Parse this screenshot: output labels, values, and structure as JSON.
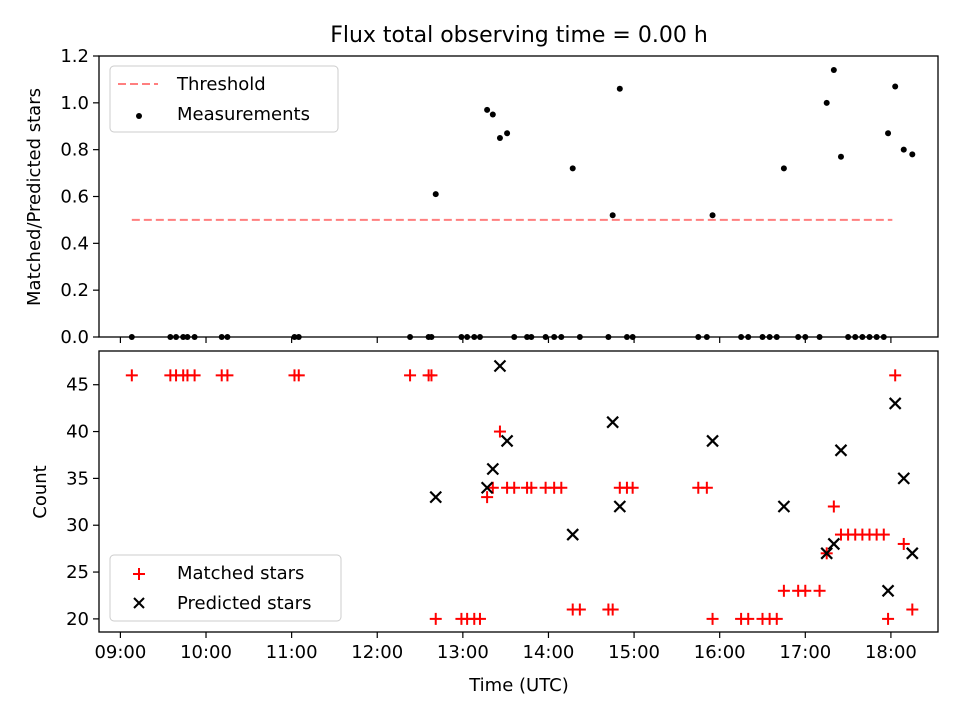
{
  "chart_data": {
    "title": "Flux total observing time = 0.00 h",
    "xlabel": "Time (UTC)",
    "x_tick_labels": [
      "09:00",
      "10:00",
      "11:00",
      "12:00",
      "13:00",
      "14:00",
      "15:00",
      "16:00",
      "17:00",
      "18:00"
    ],
    "xlim": [
      "08:45",
      "18:33"
    ],
    "colors": {
      "threshold": "#ff7f7f",
      "measurements": "#000000",
      "matched": "#ff0000",
      "predicted": "#000000"
    },
    "panels": [
      {
        "type": "scatter",
        "ylabel": "Matched/Predicted stars",
        "ylim": [
          0,
          1.2
        ],
        "y_ticks": [
          "0.0",
          "0.2",
          "0.4",
          "0.6",
          "0.8",
          "1.0",
          "1.2"
        ],
        "legend_position": "top-left",
        "series": [
          {
            "name": "Threshold",
            "kind": "dashed-line",
            "points": [
              [
                "09:08",
                0.5
              ],
              [
                "18:01",
                0.5
              ]
            ]
          },
          {
            "name": "Measurements",
            "kind": "dots",
            "points": [
              [
                "09:08",
                0
              ],
              [
                "09:35",
                0
              ],
              [
                "09:39",
                0
              ],
              [
                "09:44",
                0
              ],
              [
                "09:47",
                0
              ],
              [
                "09:52",
                0
              ],
              [
                "10:11",
                0
              ],
              [
                "10:15",
                0
              ],
              [
                "11:02",
                0
              ],
              [
                "11:05",
                0
              ],
              [
                "12:23",
                0
              ],
              [
                "12:36",
                0
              ],
              [
                "12:38",
                0
              ],
              [
                "12:41",
                0.61
              ],
              [
                "12:59",
                0
              ],
              [
                "13:03",
                0
              ],
              [
                "13:08",
                0
              ],
              [
                "13:12",
                0
              ],
              [
                "13:17",
                0.97
              ],
              [
                "13:21",
                0.95
              ],
              [
                "13:26",
                0.85
              ],
              [
                "13:31",
                0.87
              ],
              [
                "13:36",
                0
              ],
              [
                "13:45",
                0
              ],
              [
                "13:48",
                0
              ],
              [
                "13:58",
                0
              ],
              [
                "14:04",
                0
              ],
              [
                "14:09",
                0
              ],
              [
                "14:17",
                0.72
              ],
              [
                "14:22",
                0
              ],
              [
                "14:42",
                0
              ],
              [
                "14:45",
                0.52
              ],
              [
                "14:50",
                1.06
              ],
              [
                "14:55",
                0
              ],
              [
                "14:59",
                0
              ],
              [
                "15:45",
                0
              ],
              [
                "15:51",
                0
              ],
              [
                "15:55",
                0.52
              ],
              [
                "16:15",
                0
              ],
              [
                "16:20",
                0
              ],
              [
                "16:30",
                0
              ],
              [
                "16:35",
                0
              ],
              [
                "16:40",
                0
              ],
              [
                "16:45",
                0.72
              ],
              [
                "16:55",
                0
              ],
              [
                "17:00",
                0
              ],
              [
                "17:10",
                0
              ],
              [
                "17:15",
                1.0
              ],
              [
                "17:20",
                1.14
              ],
              [
                "17:25",
                0.77
              ],
              [
                "17:30",
                0
              ],
              [
                "17:35",
                0
              ],
              [
                "17:40",
                0
              ],
              [
                "17:45",
                0
              ],
              [
                "17:50",
                0
              ],
              [
                "17:55",
                0
              ],
              [
                "17:58",
                0.87
              ],
              [
                "18:03",
                1.07
              ],
              [
                "18:09",
                0.8
              ],
              [
                "18:15",
                0.78
              ]
            ]
          }
        ]
      },
      {
        "type": "scatter",
        "ylabel": "Count",
        "ylim": [
          18.6,
          48.6
        ],
        "y_ticks": [
          "20",
          "25",
          "30",
          "35",
          "40",
          "45"
        ],
        "legend_position": "bottom-left",
        "series": [
          {
            "name": "Matched stars",
            "kind": "plus",
            "points": [
              [
                "09:08",
                46
              ],
              [
                "09:35",
                46
              ],
              [
                "09:39",
                46
              ],
              [
                "09:44",
                46
              ],
              [
                "09:47",
                46
              ],
              [
                "09:52",
                46
              ],
              [
                "10:11",
                46
              ],
              [
                "10:15",
                46
              ],
              [
                "11:02",
                46
              ],
              [
                "11:05",
                46
              ],
              [
                "12:23",
                46
              ],
              [
                "12:36",
                46
              ],
              [
                "12:38",
                46
              ],
              [
                "12:41",
                20
              ],
              [
                "12:59",
                20
              ],
              [
                "13:03",
                20
              ],
              [
                "13:08",
                20
              ],
              [
                "13:12",
                20
              ],
              [
                "13:17",
                33
              ],
              [
                "13:21",
                34
              ],
              [
                "13:26",
                40
              ],
              [
                "13:31",
                34
              ],
              [
                "13:36",
                34
              ],
              [
                "13:45",
                34
              ],
              [
                "13:48",
                34
              ],
              [
                "13:58",
                34
              ],
              [
                "14:04",
                34
              ],
              [
                "14:09",
                34
              ],
              [
                "14:17",
                21
              ],
              [
                "14:22",
                21
              ],
              [
                "14:42",
                21
              ],
              [
                "14:45",
                21
              ],
              [
                "14:50",
                34
              ],
              [
                "14:55",
                34
              ],
              [
                "14:59",
                34
              ],
              [
                "15:45",
                34
              ],
              [
                "15:51",
                34
              ],
              [
                "15:55",
                20
              ],
              [
                "16:15",
                20
              ],
              [
                "16:20",
                20
              ],
              [
                "16:30",
                20
              ],
              [
                "16:35",
                20
              ],
              [
                "16:40",
                20
              ],
              [
                "16:45",
                23
              ],
              [
                "16:55",
                23
              ],
              [
                "17:00",
                23
              ],
              [
                "17:10",
                23
              ],
              [
                "17:15",
                27
              ],
              [
                "17:20",
                32
              ],
              [
                "17:25",
                29
              ],
              [
                "17:30",
                29
              ],
              [
                "17:35",
                29
              ],
              [
                "17:40",
                29
              ],
              [
                "17:45",
                29
              ],
              [
                "17:50",
                29
              ],
              [
                "17:55",
                29
              ],
              [
                "17:58",
                20
              ],
              [
                "18:03",
                46
              ],
              [
                "18:09",
                28
              ],
              [
                "18:15",
                21
              ]
            ]
          },
          {
            "name": "Predicted stars",
            "kind": "x",
            "points": [
              [
                "12:41",
                33
              ],
              [
                "13:17",
                34
              ],
              [
                "13:21",
                36
              ],
              [
                "13:26",
                47
              ],
              [
                "13:31",
                39
              ],
              [
                "14:17",
                29
              ],
              [
                "14:45",
                41
              ],
              [
                "14:50",
                32
              ],
              [
                "15:55",
                39
              ],
              [
                "16:45",
                32
              ],
              [
                "17:15",
                27
              ],
              [
                "17:20",
                28
              ],
              [
                "17:25",
                38
              ],
              [
                "17:58",
                23
              ],
              [
                "18:03",
                43
              ],
              [
                "18:09",
                35
              ],
              [
                "18:15",
                27
              ]
            ]
          }
        ]
      }
    ]
  }
}
